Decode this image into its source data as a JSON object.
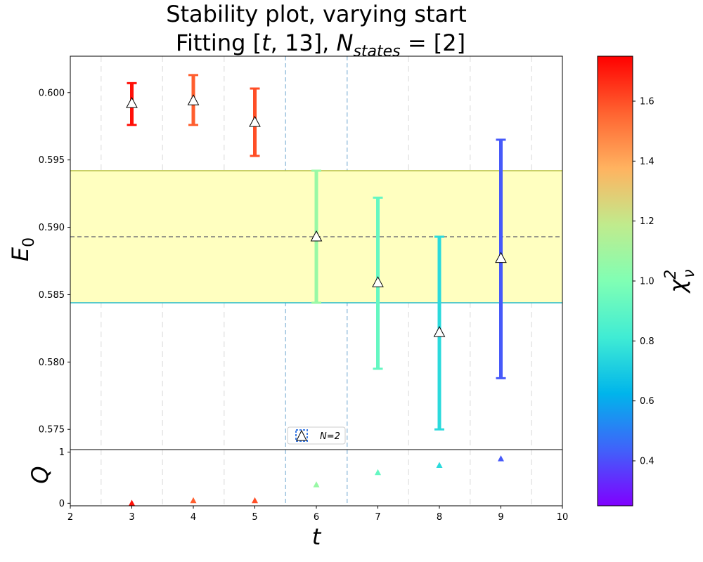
{
  "title_line1": "Stability plot, varying start",
  "title_line2_prefix": "Fitting [",
  "title_line2_t": "t",
  "title_line2_mid": ", 13], ",
  "title_line2_N": "N",
  "title_line2_sub": "states",
  "title_line2_suffix": " =  [2]",
  "xlabel": "t",
  "ylabel_E": "E",
  "ylabel_E_sub": "0",
  "ylabel_Q": "Q",
  "colorbar_label": "χ",
  "colorbar_sup": "2",
  "colorbar_sub": "ν",
  "legend_label": "N=2",
  "chart_data": {
    "type": "scatter",
    "xlim": [
      2,
      10
    ],
    "x_ticks": [
      "2",
      "3",
      "4",
      "5",
      "6",
      "7",
      "8",
      "9",
      "10"
    ],
    "top_panel": {
      "ylim": [
        0.5735,
        0.6027
      ],
      "y_ticks": [
        "0.575",
        "0.580",
        "0.585",
        "0.590",
        "0.595",
        "0.600"
      ],
      "points": [
        {
          "t": 3,
          "E0": 0.5992,
          "err_low": 0.5976,
          "err_high": 0.6007,
          "chi2": 1.72
        },
        {
          "t": 4,
          "E0": 0.5994,
          "err_low": 0.5976,
          "err_high": 0.6013,
          "chi2": 1.57
        },
        {
          "t": 5,
          "E0": 0.5978,
          "err_low": 0.5953,
          "err_high": 0.6003,
          "chi2": 1.6
        },
        {
          "t": 6,
          "E0": 0.5893,
          "err_low": 0.5844,
          "err_high": 0.5942,
          "chi2": 1.07
        },
        {
          "t": 7,
          "E0": 0.5859,
          "err_low": 0.5795,
          "err_high": 0.5922,
          "chi2": 0.92
        },
        {
          "t": 8,
          "E0": 0.5822,
          "err_low": 0.575,
          "err_high": 0.5893,
          "chi2": 0.75
        },
        {
          "t": 9,
          "E0": 0.5877,
          "err_low": 0.5788,
          "err_high": 0.5965,
          "chi2": 0.42
        }
      ],
      "band_low": 0.5844,
      "band_high": 0.5942,
      "band_center": 0.5893,
      "selected_window": [
        5.5,
        6.5
      ],
      "grid": "vertical dashed lines at half-integer t"
    },
    "bottom_panel": {
      "ylim": [
        -0.05,
        1.05
      ],
      "y_ticks": [
        "0",
        "1"
      ],
      "points": [
        {
          "t": 3,
          "Q": 0.0,
          "chi2": 1.72
        },
        {
          "t": 4,
          "Q": 0.05,
          "chi2": 1.57
        },
        {
          "t": 5,
          "Q": 0.05,
          "chi2": 1.6
        },
        {
          "t": 6,
          "Q": 0.36,
          "chi2": 1.07
        },
        {
          "t": 7,
          "Q": 0.6,
          "chi2": 0.92
        },
        {
          "t": 8,
          "Q": 0.74,
          "chi2": 0.75
        },
        {
          "t": 9,
          "Q": 0.87,
          "chi2": 0.42
        }
      ]
    },
    "colorbar": {
      "range": [
        0.25,
        1.75
      ],
      "ticks": [
        "0.4",
        "0.6",
        "0.8",
        "1.0",
        "1.2",
        "1.4",
        "1.6"
      ],
      "colormap": "rainbow"
    },
    "legend_placement": "bottom-center of top panel"
  }
}
